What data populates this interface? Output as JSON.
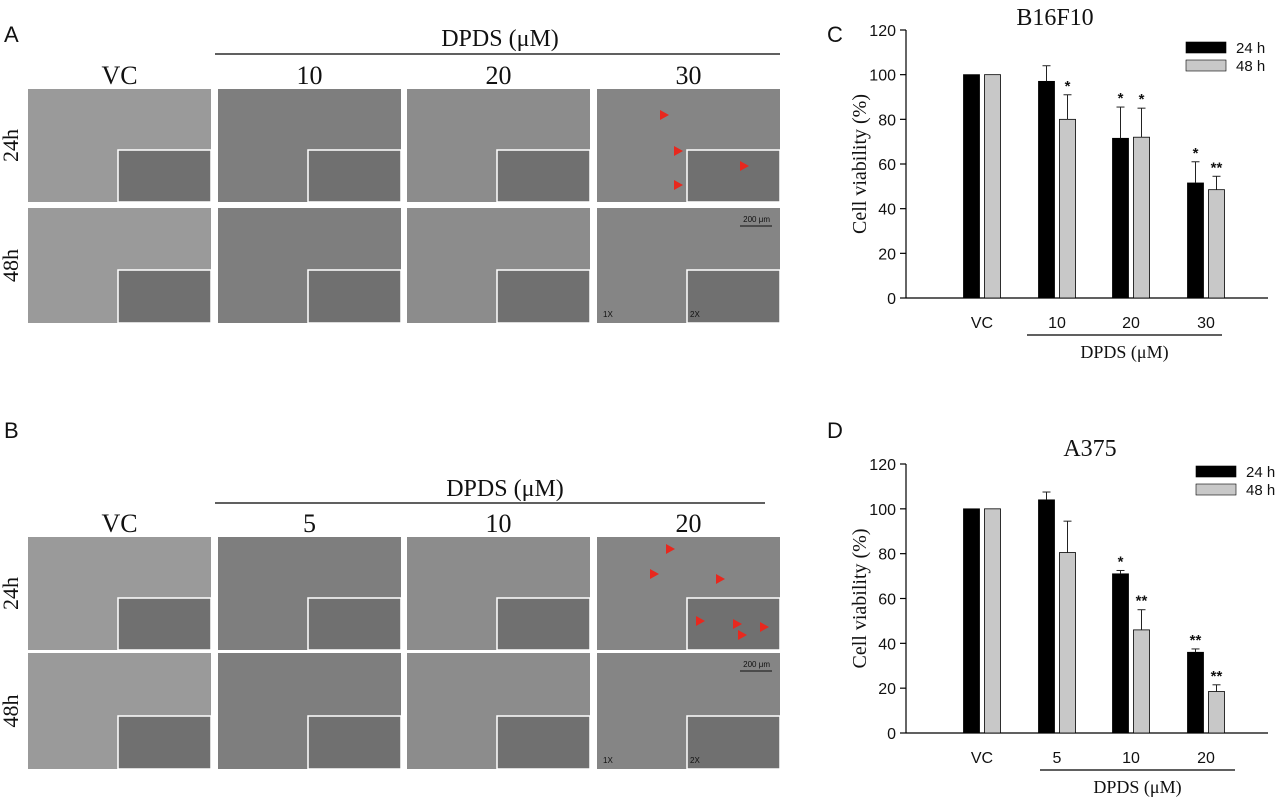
{
  "panels": {
    "A": {
      "letter": "A",
      "group_label": "DPDS (μM)",
      "columns": [
        "VC",
        "10",
        "20",
        "30"
      ],
      "rows": [
        "24h",
        "48h"
      ],
      "scale_bar": "200 μm",
      "magnifications": [
        "1X",
        "2X"
      ]
    },
    "B": {
      "letter": "B",
      "group_label": "DPDS (μM)",
      "columns": [
        "VC",
        "5",
        "10",
        "20"
      ],
      "rows": [
        "24h",
        "48h"
      ],
      "scale_bar": "200 μm",
      "magnifications": [
        "1X",
        "2X"
      ]
    },
    "C": {
      "letter": "C"
    },
    "D": {
      "letter": "D"
    }
  },
  "colors": {
    "bar_24h": "#000000",
    "bar_48h": "#c8c8c8",
    "arrow": "#e8281e",
    "micrograph": "#8a8a8a"
  },
  "chart_data": [
    {
      "type": "bar",
      "title": "B16F10",
      "ylabel": "Cell  viability  (%)",
      "xlabel": "DPDS (μM)",
      "categories": [
        "VC",
        "10",
        "20",
        "30"
      ],
      "ylim": [
        0,
        120
      ],
      "yticks": [
        0,
        20,
        40,
        60,
        80,
        100,
        120
      ],
      "legend_position": "top-right",
      "series": [
        {
          "name": "24 h",
          "values": [
            100,
            97,
            71.5,
            51.5
          ],
          "errors": [
            0,
            7,
            14,
            9.5
          ],
          "sig": [
            "",
            "",
            "*",
            "*"
          ]
        },
        {
          "name": "48 h",
          "values": [
            100,
            80,
            72,
            48.5
          ],
          "errors": [
            0,
            11,
            13,
            6
          ],
          "sig": [
            "",
            "*",
            "*",
            "**"
          ]
        }
      ]
    },
    {
      "type": "bar",
      "title": "A375",
      "ylabel": "Cell  viability  (%)",
      "xlabel": "DPDS (μM)",
      "categories": [
        "VC",
        "5",
        "10",
        "20"
      ],
      "ylim": [
        0,
        120
      ],
      "yticks": [
        0,
        20,
        40,
        60,
        80,
        100,
        120
      ],
      "legend_position": "top-right",
      "series": [
        {
          "name": "24 h",
          "values": [
            100,
            104,
            71,
            36
          ],
          "errors": [
            0,
            3.5,
            1.5,
            1.5
          ],
          "sig": [
            "",
            "",
            "*",
            "**"
          ]
        },
        {
          "name": "48 h",
          "values": [
            100,
            80.5,
            46,
            18.5
          ],
          "errors": [
            0,
            14,
            9,
            3
          ],
          "sig": [
            "",
            "",
            "**",
            "**"
          ]
        }
      ]
    }
  ]
}
